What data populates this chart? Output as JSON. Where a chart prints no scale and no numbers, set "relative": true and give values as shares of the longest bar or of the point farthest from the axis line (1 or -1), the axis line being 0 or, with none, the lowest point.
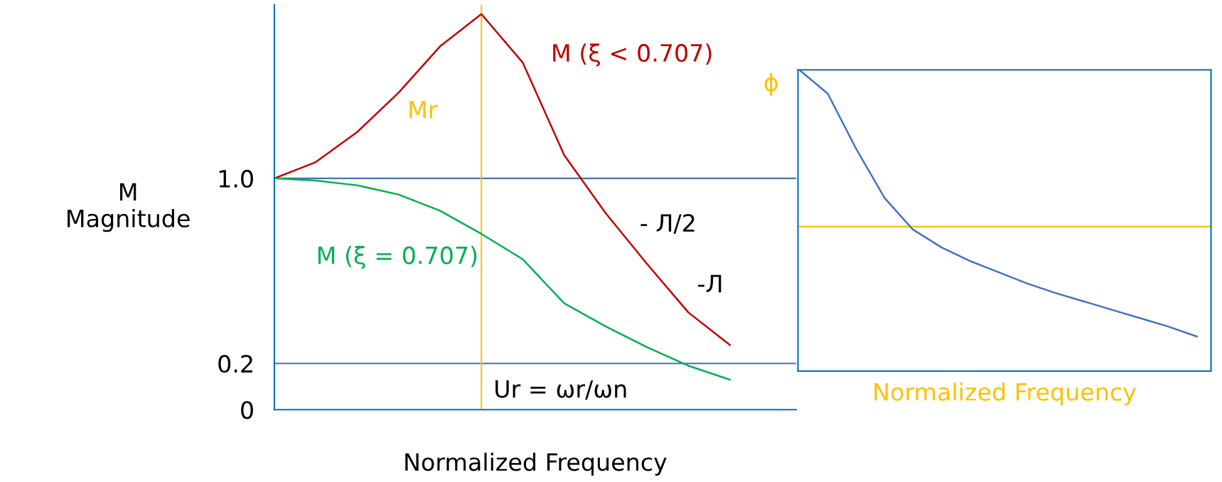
{
  "chart_data": [
    {
      "type": "line",
      "ylabel": "M\nMagnitude",
      "xlabel": "Normalized Frequency",
      "categories": [
        null,
        null,
        null,
        null,
        null,
        null,
        null,
        null,
        null,
        null,
        null,
        null
      ],
      "series": [
        {
          "name": "M (ξ < 0.707)",
          "color": "#c00000",
          "values": [
            1.0,
            1.07,
            1.2,
            1.37,
            1.57,
            1.71,
            1.5,
            1.1,
            0.85,
            0.63,
            0.42,
            0.28
          ]
        },
        {
          "name": "M (ξ = 0.707)",
          "color": "#00b050",
          "values": [
            1.0,
            0.99,
            0.97,
            0.93,
            0.86,
            0.76,
            0.65,
            0.46,
            0.36,
            0.27,
            0.19,
            0.13
          ]
        }
      ],
      "ylim": [
        0,
        1.75
      ],
      "yticks": [
        0,
        0.2,
        {
          "value": 1.0,
          "label": "1.0"
        }
      ],
      "ref_lines": [
        {
          "axis": "y",
          "value": 1.0,
          "color": "#4472c4"
        },
        {
          "axis": "y",
          "value": 0.2,
          "color": "#4472c4"
        }
      ],
      "annotations": [
        "Mr",
        "- Л/2",
        "-Л",
        "Ur = ωr/ωn"
      ],
      "grid": false,
      "legend": false
    },
    {
      "type": "line",
      "relative": true,
      "xlabel": "Normalized Frequency",
      "categories": [
        null,
        null,
        null,
        null,
        null,
        null,
        null,
        null,
        null,
        null,
        null,
        null,
        null,
        null,
        null
      ],
      "series": [
        {
          "color": "#4472c4",
          "values": [
            1.0,
            0.921,
            0.738,
            0.575,
            0.47,
            0.411,
            0.366,
            0.329,
            0.292,
            0.26,
            0.232,
            0.204,
            0.176,
            0.148,
            0.115
          ]
        }
      ],
      "ref_lines": [
        {
          "axis": "y",
          "value": 0.48,
          "color": "#ffc000"
        }
      ],
      "annotations": [
        "ϕ"
      ],
      "grid": false,
      "legend": false
    }
  ]
}
